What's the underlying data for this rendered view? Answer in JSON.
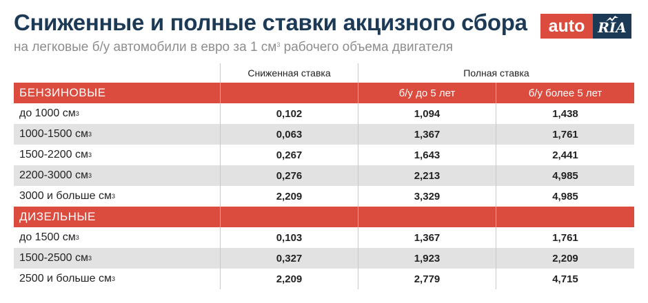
{
  "title": "Сниженные и полные ставки акцизного сбора",
  "subtitle_main": "на легковые б/у автомобили в евро за 1 см",
  "subtitle_sup": "3",
  "subtitle_end": " рабочего объема двигателя",
  "logo": {
    "left": "auto",
    "right": "RIA",
    "bird_icon": "bird-icon"
  },
  "header": {
    "reduced": "Сниженная ставка",
    "full": "Полная ставка"
  },
  "colors": {
    "accent": "#db4c3f",
    "navy": "#1c3a56",
    "shade": "#e2e2e2"
  },
  "sections": [
    {
      "name": "БЕНЗИНОВЫЕ",
      "col2": "б/у до 5 лет",
      "col3": "б/у более 5 лет",
      "rows": [
        {
          "label": "до 1000 см",
          "sup": "3",
          "reduced": "0,102",
          "upto5": "1,094",
          "over5": "1,438"
        },
        {
          "label": "1000-1500 см",
          "sup": "3",
          "reduced": "0,063",
          "upto5": "1,367",
          "over5": "1,761"
        },
        {
          "label": "1500-2200 см",
          "sup": "3",
          "reduced": "0,267",
          "upto5": "1,643",
          "over5": "2,441"
        },
        {
          "label": "2200-3000 см",
          "sup": "3",
          "reduced": "0,276",
          "upto5": "2,213",
          "over5": "4,985"
        },
        {
          "label": "3000 и больше см",
          "sup": "3",
          "reduced": "2,209",
          "upto5": "3,329",
          "over5": "4,985"
        }
      ]
    },
    {
      "name": "ДИЗЕЛЬНЫЕ",
      "col2": "",
      "col3": "",
      "rows": [
        {
          "label": "до 1500 см",
          "sup": "3",
          "reduced": "0,103",
          "upto5": "1,367",
          "over5": "1,761"
        },
        {
          "label": "1500-2500 см",
          "sup": "3",
          "reduced": "0,327",
          "upto5": "1,923",
          "over5": "2,209"
        },
        {
          "label": "2500 и больше см",
          "sup": "3",
          "reduced": "2,209",
          "upto5": "2,779",
          "over5": "4,715"
        }
      ]
    }
  ]
}
